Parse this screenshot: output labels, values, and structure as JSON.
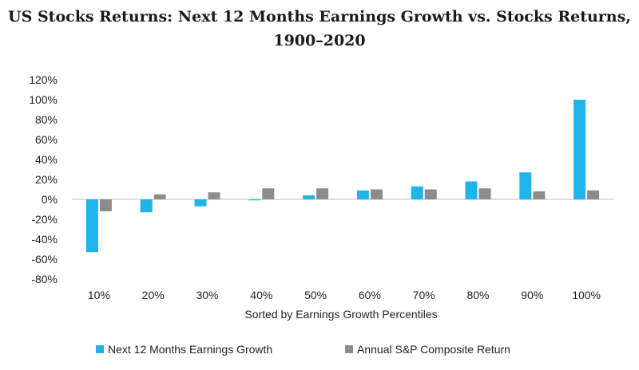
{
  "chart_data": {
    "type": "bar",
    "title_line1": "US Stocks Returns: Next 12 Months Earnings Growth vs. Stocks Returns,",
    "title_line2": "1900–2020",
    "xlabel": "Sorted by Earnings Growth Percentiles",
    "ylabel": "",
    "categories": [
      "10%",
      "20%",
      "30%",
      "40%",
      "50%",
      "60%",
      "70%",
      "80%",
      "90%",
      "100%"
    ],
    "yticks": [
      "120%",
      "100%",
      "80%",
      "60%",
      "40%",
      "20%",
      "0%",
      "-20%",
      "-40%",
      "-60%",
      "-80%"
    ],
    "ylim": [
      -80,
      120
    ],
    "grid": false,
    "legend_position": "bottom",
    "series": [
      {
        "name": "Next 12 Months Earnings Growth",
        "color": "#1fb4ea",
        "values": [
          -53,
          -13,
          -7,
          -1,
          4,
          9,
          13,
          18,
          27,
          100
        ]
      },
      {
        "name": "Annual S&P Composite Return",
        "color": "#8c8c8c",
        "values": [
          -12,
          5,
          7,
          11,
          11,
          10,
          10,
          11,
          8,
          9
        ]
      }
    ]
  }
}
